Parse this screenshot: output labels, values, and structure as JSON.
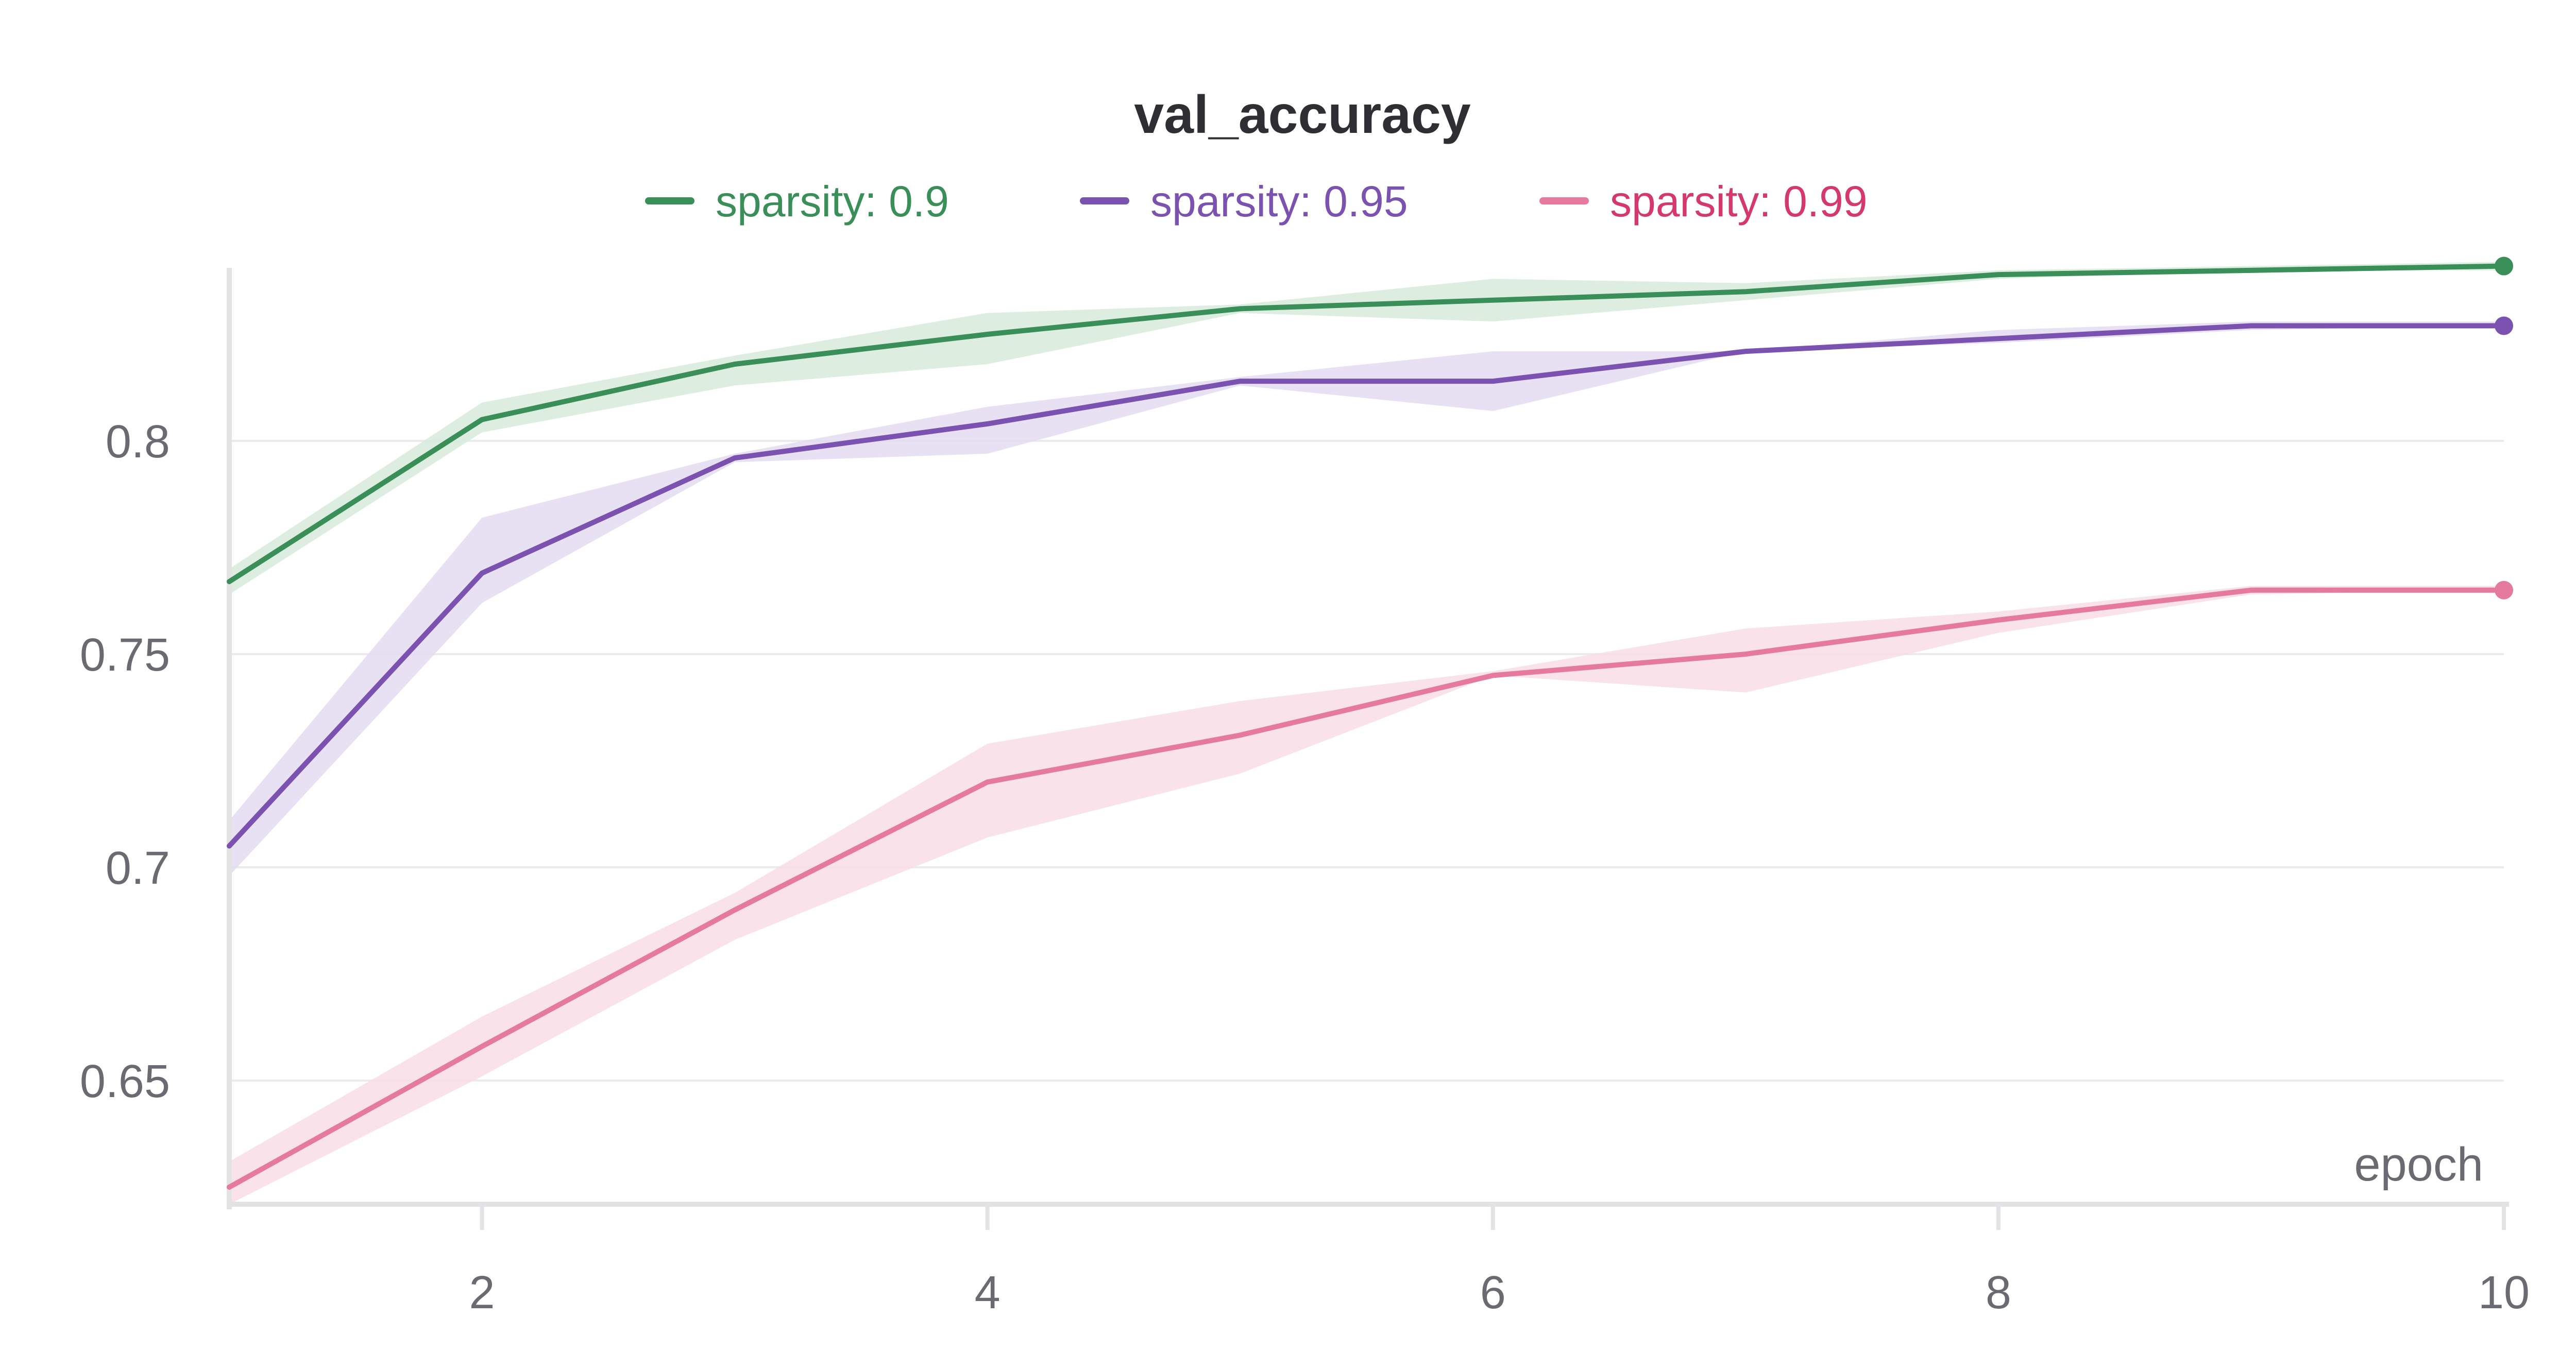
{
  "chart_data": {
    "type": "line",
    "title": "val_accuracy",
    "xlabel": "epoch",
    "ylabel": "",
    "x": [
      1,
      2,
      3,
      4,
      5,
      6,
      7,
      8,
      9,
      10
    ],
    "xlim": [
      1,
      10
    ],
    "ylim": [
      0.621,
      0.843
    ],
    "xticks": [
      2,
      4,
      6,
      8,
      10
    ],
    "yticks": [
      0.65,
      0.7,
      0.75,
      0.8
    ],
    "ytick_labels": [
      "0.65",
      "0.7",
      "0.75",
      "0.8"
    ],
    "grid": true,
    "legend_position": "top-center",
    "series": [
      {
        "name": "sparsity: 0.9",
        "color": "#3a8e57",
        "fill": "#d7ebdc",
        "text_color": "#3a8e57",
        "values": [
          0.767,
          0.805,
          0.818,
          0.825,
          0.831,
          0.833,
          0.835,
          0.839,
          0.84,
          0.841
        ],
        "lower": [
          0.764,
          0.802,
          0.813,
          0.818,
          0.83,
          0.828,
          0.833,
          0.838,
          0.84,
          0.84
        ],
        "upper": [
          0.77,
          0.809,
          0.82,
          0.83,
          0.832,
          0.838,
          0.837,
          0.84,
          0.841,
          0.842
        ]
      },
      {
        "name": "sparsity: 0.95",
        "color": "#7b52b0",
        "fill": "#e3dcf1",
        "text_color": "#7b52b0",
        "values": [
          0.705,
          0.769,
          0.796,
          0.804,
          0.814,
          0.814,
          0.821,
          0.824,
          0.827,
          0.827
        ],
        "lower": [
          0.698,
          0.762,
          0.795,
          0.797,
          0.813,
          0.807,
          0.821,
          0.823,
          0.826,
          0.827
        ],
        "upper": [
          0.711,
          0.782,
          0.797,
          0.808,
          0.815,
          0.821,
          0.821,
          0.826,
          0.828,
          0.828
        ]
      },
      {
        "name": "sparsity: 0.99",
        "color": "#e57a9e",
        "fill": "#f8dde6",
        "text_color": "#d4386f",
        "values": [
          0.625,
          0.658,
          0.69,
          0.72,
          0.731,
          0.745,
          0.75,
          0.758,
          0.765,
          0.765
        ],
        "lower": [
          0.621,
          0.651,
          0.683,
          0.707,
          0.722,
          0.745,
          0.741,
          0.755,
          0.764,
          0.765
        ],
        "upper": [
          0.631,
          0.665,
          0.694,
          0.729,
          0.739,
          0.746,
          0.756,
          0.76,
          0.766,
          0.766
        ]
      }
    ]
  }
}
